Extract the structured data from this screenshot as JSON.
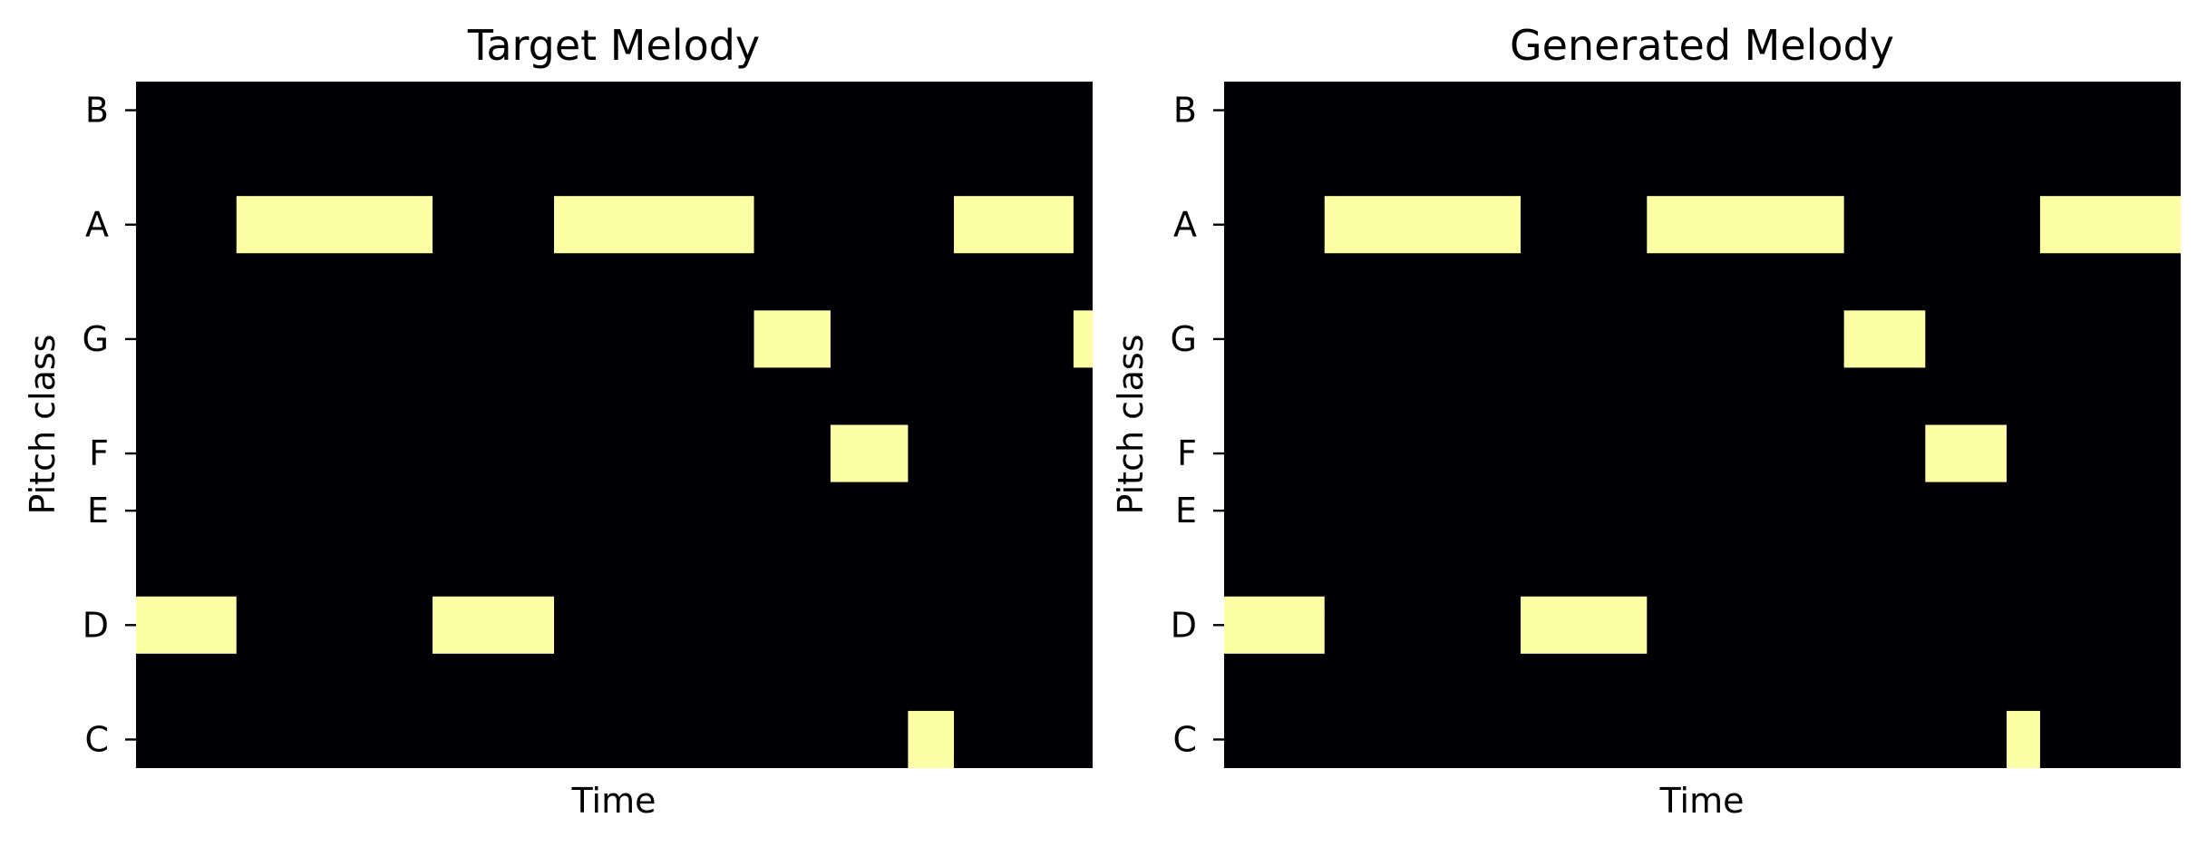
{
  "chart_data": [
    {
      "type": "heatmap",
      "title": "Target Melody",
      "xlabel": "Time",
      "ylabel": "Pitch class",
      "yticks": [
        "C",
        "D",
        "E",
        "F",
        "G",
        "A",
        "B"
      ],
      "ytick_values": [
        0,
        2,
        4,
        5,
        7,
        9,
        11
      ],
      "xlim": [
        0,
        1
      ],
      "ylim": [
        -0.5,
        11.5
      ],
      "grid": false,
      "background_color": "#000004",
      "note_color": "#fcffa4",
      "notes": [
        {
          "pitch": 2,
          "start": 0.0,
          "end": 0.105
        },
        {
          "pitch": 9,
          "start": 0.105,
          "end": 0.31
        },
        {
          "pitch": 2,
          "start": 0.31,
          "end": 0.437
        },
        {
          "pitch": 9,
          "start": 0.437,
          "end": 0.646
        },
        {
          "pitch": 7,
          "start": 0.646,
          "end": 0.726
        },
        {
          "pitch": 5,
          "start": 0.726,
          "end": 0.807
        },
        {
          "pitch": 0,
          "start": 0.807,
          "end": 0.855
        },
        {
          "pitch": 9,
          "start": 0.855,
          "end": 0.98
        },
        {
          "pitch": 7,
          "start": 0.98,
          "end": 1.0
        }
      ]
    },
    {
      "type": "heatmap",
      "title": "Generated Melody",
      "xlabel": "Time",
      "ylabel": "Pitch class",
      "yticks": [
        "C",
        "D",
        "E",
        "F",
        "G",
        "A",
        "B"
      ],
      "ytick_values": [
        0,
        2,
        4,
        5,
        7,
        9,
        11
      ],
      "xlim": [
        0,
        1
      ],
      "ylim": [
        -0.5,
        11.5
      ],
      "grid": false,
      "background_color": "#000004",
      "note_color": "#fcffa4",
      "notes": [
        {
          "pitch": 2,
          "start": 0.0,
          "end": 0.105
        },
        {
          "pitch": 9,
          "start": 0.105,
          "end": 0.31
        },
        {
          "pitch": 2,
          "start": 0.31,
          "end": 0.442
        },
        {
          "pitch": 9,
          "start": 0.442,
          "end": 0.648
        },
        {
          "pitch": 7,
          "start": 0.648,
          "end": 0.733
        },
        {
          "pitch": 5,
          "start": 0.733,
          "end": 0.818
        },
        {
          "pitch": 0,
          "start": 0.818,
          "end": 0.853
        },
        {
          "pitch": 9,
          "start": 0.853,
          "end": 1.0
        }
      ]
    }
  ]
}
